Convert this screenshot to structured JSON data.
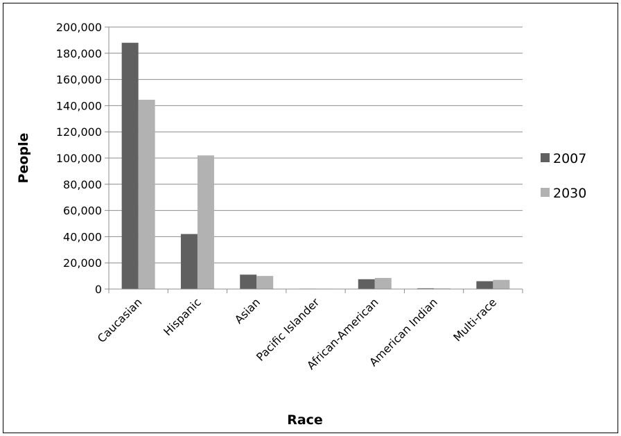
{
  "chart_data": {
    "type": "bar",
    "title": "",
    "xlabel": "Race",
    "ylabel": "People",
    "categories": [
      "Caucasian",
      "Hispanic",
      "Asian",
      "Pacific Islander",
      "African-American",
      "American Indian",
      "Multi-race"
    ],
    "series": [
      {
        "name": "2007",
        "color": "#606060",
        "values": [
          188000,
          42000,
          11000,
          300,
          7500,
          600,
          6000
        ]
      },
      {
        "name": "2030",
        "color": "#b2b2b2",
        "values": [
          144500,
          102000,
          10000,
          300,
          8500,
          500,
          7000
        ]
      }
    ],
    "ylim": [
      0,
      200000
    ],
    "yticks": [
      0,
      20000,
      40000,
      60000,
      80000,
      100000,
      120000,
      140000,
      160000,
      180000,
      200000
    ],
    "ytick_labels": [
      "0",
      "20,000",
      "40,000",
      "60,000",
      "80,000",
      "100,000",
      "120,000",
      "140,000",
      "160,000",
      "180,000",
      "200,000"
    ],
    "grid": true,
    "legend_position": "right"
  }
}
